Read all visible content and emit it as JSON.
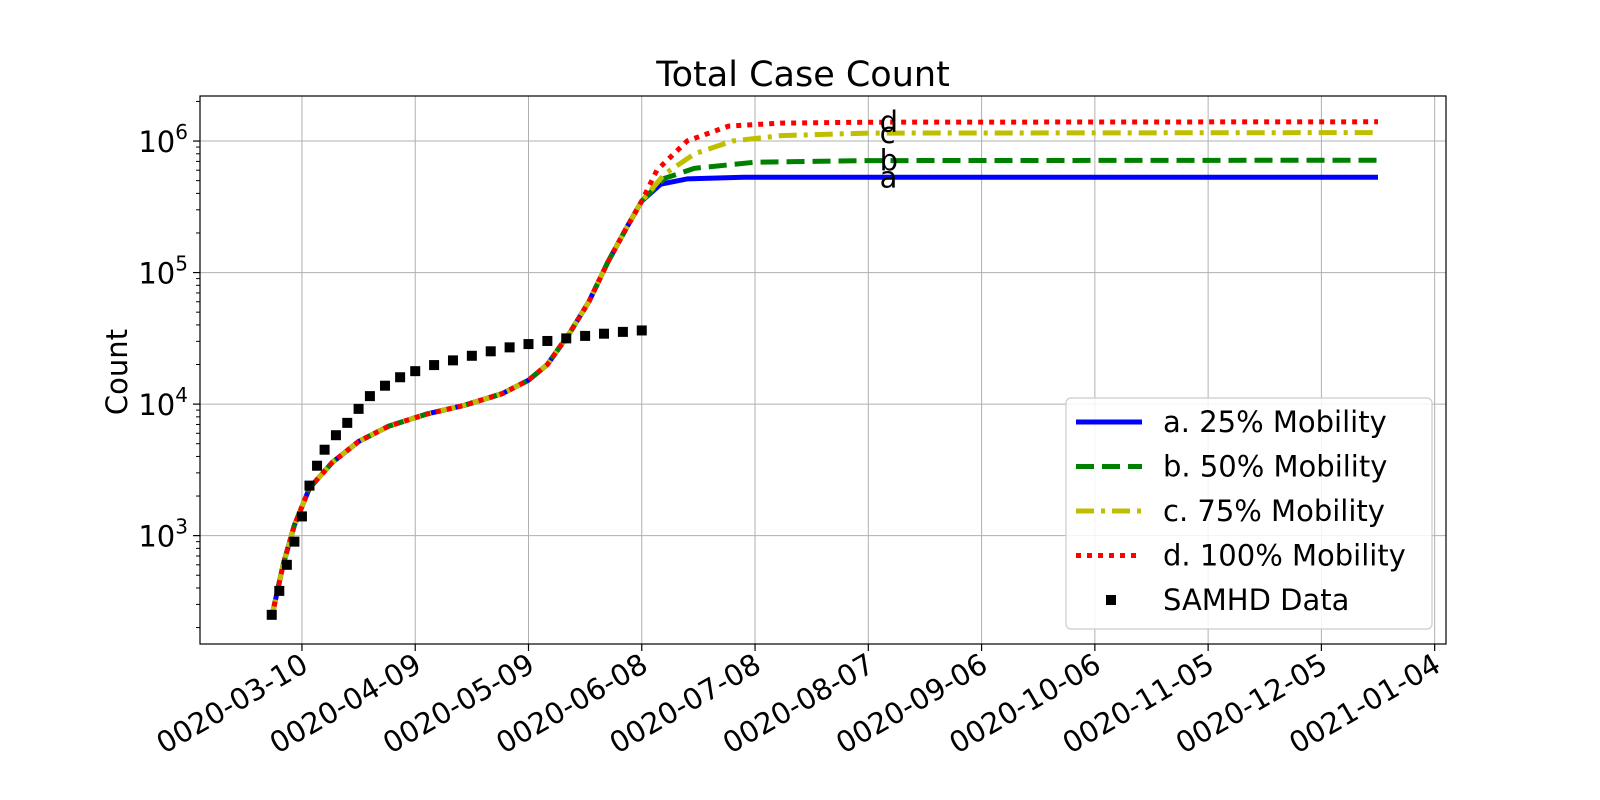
{
  "chart_data": {
    "type": "line",
    "title": "Total Case Count",
    "xlabel": "",
    "ylabel": "Count",
    "yscale": "log",
    "ylim": [
      150,
      2200000
    ],
    "xlim": [
      "0020-02-12",
      "0021-01-07"
    ],
    "grid": true,
    "legend_position": "lower-right",
    "x_ticks": [
      "0020-03-10",
      "0020-04-09",
      "0020-05-09",
      "0020-06-08",
      "0020-07-08",
      "0020-08-07",
      "0020-09-06",
      "0020-10-06",
      "0020-11-05",
      "0020-12-05",
      "0021-01-04"
    ],
    "y_ticks": [
      {
        "value": 1000,
        "base": "10",
        "exp": "3"
      },
      {
        "value": 10000,
        "base": "10",
        "exp": "4"
      },
      {
        "value": 100000,
        "base": "10",
        "exp": "5"
      },
      {
        "value": 1000000,
        "base": "10",
        "exp": "6"
      }
    ],
    "series": [
      {
        "name": "a. 25% Mobility",
        "color": "#0000ff",
        "style": "solid",
        "points": [
          [
            "0020-03-02",
            240
          ],
          [
            "0020-03-05",
            600
          ],
          [
            "0020-03-08",
            1200
          ],
          [
            "0020-03-12",
            2300
          ],
          [
            "0020-03-18",
            3600
          ],
          [
            "0020-03-25",
            5200
          ],
          [
            "0020-04-02",
            6800
          ],
          [
            "0020-04-12",
            8400
          ],
          [
            "0020-04-22",
            9800
          ],
          [
            "0020-05-02",
            12000
          ],
          [
            "0020-05-09",
            15200
          ],
          [
            "0020-05-14",
            20000
          ],
          [
            "0020-05-20",
            35000
          ],
          [
            "0020-05-25",
            60000
          ],
          [
            "0020-05-30",
            120000
          ],
          [
            "0020-06-04",
            220000
          ],
          [
            "0020-06-08",
            350000
          ],
          [
            "0020-06-13",
            470000
          ],
          [
            "0020-06-20",
            515000
          ],
          [
            "0020-07-05",
            530000
          ],
          [
            "0020-08-07",
            530000
          ],
          [
            "0020-12-20",
            530000
          ]
        ]
      },
      {
        "name": "b. 50% Mobility",
        "color": "#008000",
        "style": "dashed",
        "points": [
          [
            "0020-03-02",
            240
          ],
          [
            "0020-03-05",
            600
          ],
          [
            "0020-03-08",
            1200
          ],
          [
            "0020-03-12",
            2300
          ],
          [
            "0020-03-18",
            3600
          ],
          [
            "0020-03-25",
            5200
          ],
          [
            "0020-04-02",
            6800
          ],
          [
            "0020-04-12",
            8400
          ],
          [
            "0020-04-22",
            9800
          ],
          [
            "0020-05-02",
            12000
          ],
          [
            "0020-05-09",
            15200
          ],
          [
            "0020-05-14",
            20000
          ],
          [
            "0020-05-20",
            35000
          ],
          [
            "0020-05-25",
            60000
          ],
          [
            "0020-05-30",
            120000
          ],
          [
            "0020-06-04",
            220000
          ],
          [
            "0020-06-08",
            350000
          ],
          [
            "0020-06-14",
            520000
          ],
          [
            "0020-06-22",
            620000
          ],
          [
            "0020-07-08",
            690000
          ],
          [
            "0020-08-07",
            710000
          ],
          [
            "0020-12-20",
            715000
          ]
        ]
      },
      {
        "name": "c. 75% Mobility",
        "color": "#bfbf00",
        "style": "dashdot",
        "points": [
          [
            "0020-03-02",
            240
          ],
          [
            "0020-03-05",
            600
          ],
          [
            "0020-03-08",
            1200
          ],
          [
            "0020-03-12",
            2300
          ],
          [
            "0020-03-18",
            3600
          ],
          [
            "0020-03-25",
            5200
          ],
          [
            "0020-04-02",
            6800
          ],
          [
            "0020-04-12",
            8400
          ],
          [
            "0020-04-22",
            9800
          ],
          [
            "0020-05-02",
            12000
          ],
          [
            "0020-05-09",
            15200
          ],
          [
            "0020-05-14",
            20000
          ],
          [
            "0020-05-20",
            35000
          ],
          [
            "0020-05-25",
            60000
          ],
          [
            "0020-05-30",
            120000
          ],
          [
            "0020-06-04",
            220000
          ],
          [
            "0020-06-08",
            350000
          ],
          [
            "0020-06-14",
            560000
          ],
          [
            "0020-06-22",
            800000
          ],
          [
            "0020-07-02",
            1000000
          ],
          [
            "0020-07-15",
            1100000
          ],
          [
            "0020-08-07",
            1150000
          ],
          [
            "0020-12-20",
            1160000
          ]
        ]
      },
      {
        "name": "d. 100% Mobility",
        "color": "#ff0000",
        "style": "dotted",
        "points": [
          [
            "0020-03-02",
            240
          ],
          [
            "0020-03-05",
            600
          ],
          [
            "0020-03-08",
            1200
          ],
          [
            "0020-03-12",
            2300
          ],
          [
            "0020-03-18",
            3600
          ],
          [
            "0020-03-25",
            5200
          ],
          [
            "0020-04-02",
            6800
          ],
          [
            "0020-04-12",
            8400
          ],
          [
            "0020-04-22",
            9800
          ],
          [
            "0020-05-02",
            12000
          ],
          [
            "0020-05-09",
            15200
          ],
          [
            "0020-05-14",
            20000
          ],
          [
            "0020-05-20",
            35000
          ],
          [
            "0020-05-25",
            60000
          ],
          [
            "0020-05-30",
            120000
          ],
          [
            "0020-06-04",
            220000
          ],
          [
            "0020-06-08",
            350000
          ],
          [
            "0020-06-12",
            600000
          ],
          [
            "0020-06-20",
            1000000
          ],
          [
            "0020-07-01",
            1300000
          ],
          [
            "0020-07-15",
            1370000
          ],
          [
            "0020-08-07",
            1390000
          ],
          [
            "0020-12-20",
            1400000
          ]
        ]
      },
      {
        "name": "SAMHD Data",
        "color": "#000000",
        "style": "markers",
        "points": [
          [
            "0020-03-02",
            250
          ],
          [
            "0020-03-04",
            380
          ],
          [
            "0020-03-06",
            600
          ],
          [
            "0020-03-08",
            900
          ],
          [
            "0020-03-10",
            1400
          ],
          [
            "0020-03-12",
            2400
          ],
          [
            "0020-03-14",
            3400
          ],
          [
            "0020-03-16",
            4500
          ],
          [
            "0020-03-19",
            5800
          ],
          [
            "0020-03-22",
            7200
          ],
          [
            "0020-03-25",
            9200
          ],
          [
            "0020-03-28",
            11500
          ],
          [
            "0020-04-01",
            13800
          ],
          [
            "0020-04-05",
            16000
          ],
          [
            "0020-04-09",
            17800
          ],
          [
            "0020-04-14",
            19800
          ],
          [
            "0020-04-19",
            21500
          ],
          [
            "0020-04-24",
            23300
          ],
          [
            "0020-04-29",
            25200
          ],
          [
            "0020-05-04",
            27000
          ],
          [
            "0020-05-09",
            28600
          ],
          [
            "0020-05-14",
            30200
          ],
          [
            "0020-05-19",
            31600
          ],
          [
            "0020-05-24",
            33000
          ],
          [
            "0020-05-29",
            34300
          ],
          [
            "0020-06-03",
            35400
          ],
          [
            "0020-06-08",
            36300
          ]
        ]
      }
    ],
    "annotations": [
      {
        "text": "a",
        "x": "0020-08-10",
        "y": 530000
      },
      {
        "text": "b",
        "x": "0020-08-10",
        "y": 710000
      },
      {
        "text": "c",
        "x": "0020-08-10",
        "y": 1150000
      },
      {
        "text": "d",
        "x": "0020-08-10",
        "y": 1390000
      }
    ]
  }
}
